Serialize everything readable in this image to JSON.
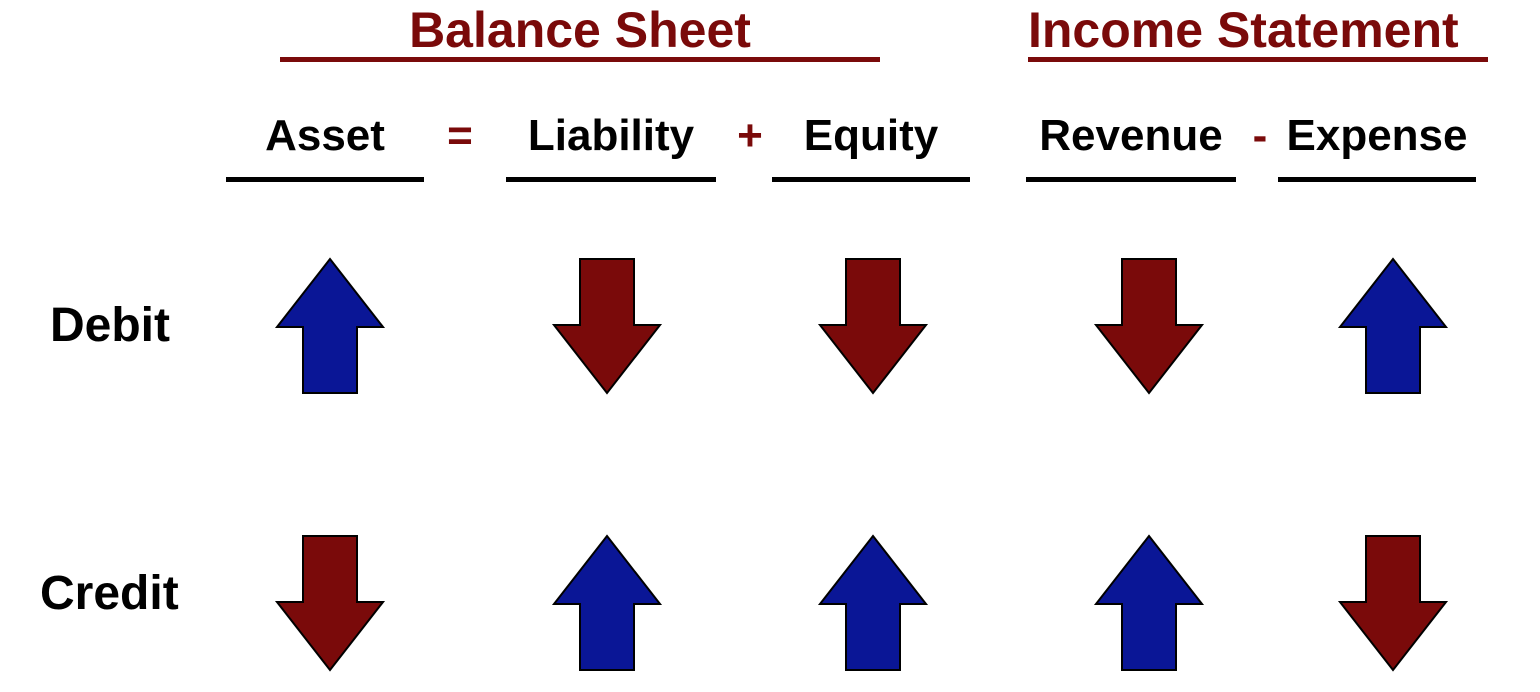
{
  "balance_sheet": {
    "title": "Balance Sheet"
  },
  "income_statement": {
    "title": "Income Statement"
  },
  "columns": [
    {
      "key": "asset",
      "label": "Asset",
      "debit": "up",
      "credit": "down"
    },
    {
      "key": "liability",
      "label": "Liability",
      "debit": "down",
      "credit": "up"
    },
    {
      "key": "equity",
      "label": "Equity",
      "debit": "down",
      "credit": "up"
    },
    {
      "key": "revenue",
      "label": "Revenue",
      "debit": "down",
      "credit": "up"
    },
    {
      "key": "expense",
      "label": "Expense",
      "debit": "up",
      "credit": "down"
    }
  ],
  "operators": [
    "=",
    "+",
    "-"
  ],
  "rows": {
    "debit": "Debit",
    "credit": "Credit"
  },
  "colors": {
    "increase_arrow": "#0a1696",
    "decrease_arrow": "#7a0a0a",
    "heading": "#7a0a0a",
    "text": "#000000"
  }
}
